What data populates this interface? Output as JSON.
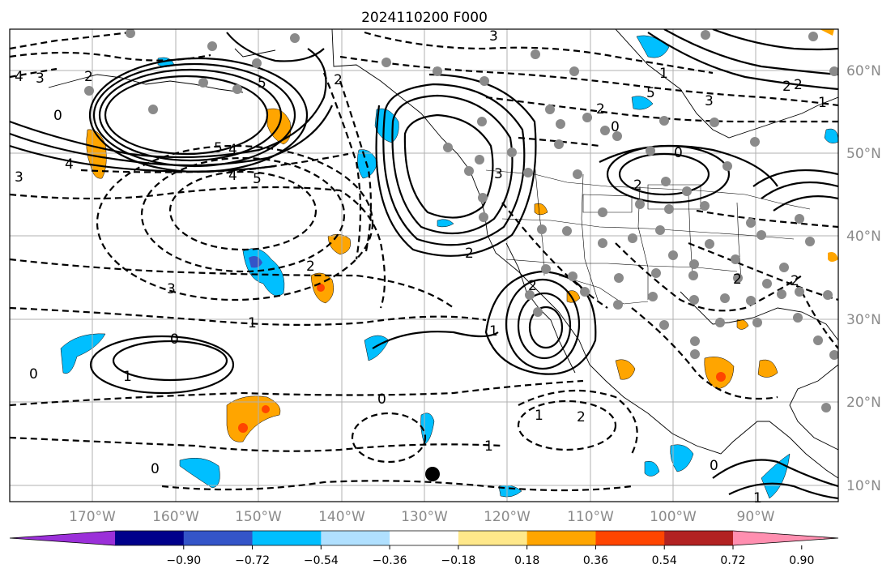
{
  "title": "2024110200 F000",
  "lat_labels": [
    "60°N",
    "50°N",
    "40°N",
    "30°N",
    "20°N",
    "10°N"
  ],
  "lon_labels": [
    "170°W",
    "160°W",
    "150°W",
    "140°W",
    "130°W",
    "120°W",
    "110°W",
    "100°W",
    "90°W"
  ],
  "colorbar": {
    "ticks": [
      "−0.90",
      "−0.72",
      "−0.54",
      "−0.36",
      "−0.18",
      "0.18",
      "0.36",
      "0.54",
      "0.72",
      "0.90"
    ],
    "colors": [
      "#9b30d9",
      "#00008b",
      "#3455c8",
      "#00bfff",
      "#b0e0ff",
      "#ffffff",
      "#ffe88a",
      "#ffa500",
      "#ff4500",
      "#b22222",
      "#ff8fb0"
    ]
  },
  "contour_labels": [
    "4",
    "3",
    "2",
    "0",
    "5",
    "4",
    "5",
    "4",
    "3",
    "2",
    "1",
    "0",
    "0",
    "1",
    "2",
    "3",
    "4",
    "5",
    "2",
    "1",
    "2",
    "0",
    "2",
    "3",
    "2",
    "1",
    "1",
    "0",
    "0",
    "5",
    "3",
    "2",
    "1",
    "3",
    "2",
    "1",
    "0",
    "0",
    "1",
    "2",
    "2",
    "2"
  ],
  "colors": {
    "coast": "#000000",
    "grid": "#b0b0b0",
    "station": "#8a8a8a",
    "positive_light": "#ffa500",
    "positive_mid": "#ff4500",
    "negative_light": "#00bfff",
    "negative_mid": "#3455c8",
    "marker": "#000000"
  }
}
